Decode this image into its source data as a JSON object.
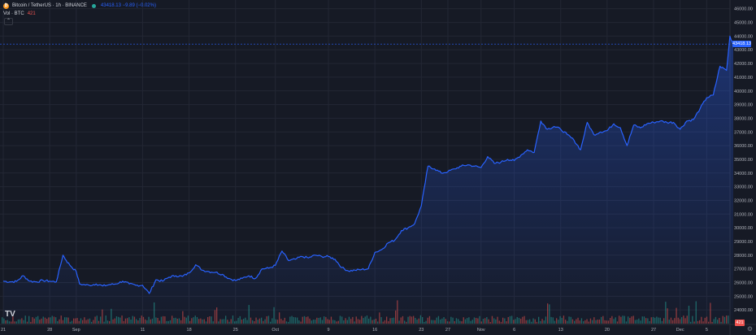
{
  "legend": {
    "symbol": "Bitcoin / TetherUS · 1h · BINANCE",
    "quote": "43418.13 −9.89 (−0.02%)",
    "vol_label": "Vol · BTC",
    "vol_value": "421",
    "collapse_glyph": "⌃"
  },
  "price_tag": "43418.13",
  "vol_tag": "421",
  "logo_text": "TV",
  "settings_icon": "gear-icon",
  "colors": {
    "background": "#161a25",
    "line": "#2962ff",
    "up": "#26a69a",
    "down": "#ef5350",
    "grid": "#232734"
  },
  "chart_data": {
    "type": "area",
    "x_unit": "days",
    "x_ticks": [
      {
        "label": "21",
        "x": 0
      },
      {
        "label": "28",
        "x": 7
      },
      {
        "label": "Sep",
        "x": 11
      },
      {
        "label": "11",
        "x": 21
      },
      {
        "label": "18",
        "x": 28
      },
      {
        "label": "25",
        "x": 35
      },
      {
        "label": "Oct",
        "x": 41
      },
      {
        "label": "9",
        "x": 49
      },
      {
        "label": "16",
        "x": 56
      },
      {
        "label": "23",
        "x": 63
      },
      {
        "label": "27",
        "x": 67
      },
      {
        "label": "Nov",
        "x": 72
      },
      {
        "label": "6",
        "x": 77
      },
      {
        "label": "13",
        "x": 84
      },
      {
        "label": "20",
        "x": 91
      },
      {
        "label": "27",
        "x": 98
      },
      {
        "label": "Dec",
        "x": 102
      },
      {
        "label": "5",
        "x": 106
      }
    ],
    "x_range": [
      0,
      110
    ],
    "y_range": [
      23000,
      46400
    ],
    "y_ticks": [
      24000,
      25000,
      26000,
      27000,
      28000,
      29000,
      30000,
      31000,
      32000,
      33000,
      34000,
      35000,
      36000,
      37000,
      38000,
      39000,
      40000,
      41000,
      42000,
      43000,
      44000,
      45000,
      46000
    ],
    "y_tick_format": "0.00",
    "grid": true,
    "series": [
      {
        "values": [
          [
            0,
            26100
          ],
          [
            1,
            26050
          ],
          [
            2,
            26080
          ],
          [
            3,
            26500
          ],
          [
            4,
            26100
          ],
          [
            5,
            26050
          ],
          [
            6,
            26150
          ],
          [
            7,
            26100
          ],
          [
            8,
            26050
          ],
          [
            9,
            28000
          ],
          [
            9.5,
            27600
          ],
          [
            10,
            27300
          ],
          [
            11,
            26800
          ],
          [
            11.5,
            25900
          ],
          [
            12,
            25850
          ],
          [
            13,
            25800
          ],
          [
            14,
            25900
          ],
          [
            15,
            25750
          ],
          [
            16,
            25850
          ],
          [
            17,
            25900
          ],
          [
            18,
            26100
          ],
          [
            19,
            25900
          ],
          [
            20,
            25800
          ],
          [
            21,
            25800
          ],
          [
            22,
            25200
          ],
          [
            23,
            26200
          ],
          [
            24,
            26100
          ],
          [
            25,
            26400
          ],
          [
            26,
            26500
          ],
          [
            27,
            26450
          ],
          [
            28,
            26700
          ],
          [
            29,
            27300
          ],
          [
            30,
            26900
          ],
          [
            31,
            26800
          ],
          [
            32,
            26750
          ],
          [
            33,
            26600
          ],
          [
            34,
            26300
          ],
          [
            35,
            26150
          ],
          [
            36,
            26300
          ],
          [
            37,
            26500
          ],
          [
            38,
            26300
          ],
          [
            39,
            27000
          ],
          [
            40,
            27050
          ],
          [
            41,
            27250
          ],
          [
            42,
            28300
          ],
          [
            43,
            27600
          ],
          [
            44,
            27700
          ],
          [
            45,
            27900
          ],
          [
            46,
            27800
          ],
          [
            47,
            28000
          ],
          [
            48,
            27900
          ],
          [
            49,
            27900
          ],
          [
            50,
            27700
          ],
          [
            51,
            27100
          ],
          [
            52,
            26850
          ],
          [
            53,
            26900
          ],
          [
            54,
            26950
          ],
          [
            55,
            27000
          ],
          [
            56,
            28200
          ],
          [
            57,
            28400
          ],
          [
            58,
            28900
          ],
          [
            59,
            29100
          ],
          [
            60,
            29800
          ],
          [
            61,
            30000
          ],
          [
            62,
            30300
          ],
          [
            63,
            31600
          ],
          [
            64,
            34500
          ],
          [
            65,
            34300
          ],
          [
            66,
            34000
          ],
          [
            67,
            34100
          ],
          [
            68,
            34300
          ],
          [
            69,
            34500
          ],
          [
            70,
            34600
          ],
          [
            71,
            34500
          ],
          [
            72,
            34400
          ],
          [
            73,
            35200
          ],
          [
            74,
            34700
          ],
          [
            75,
            34800
          ],
          [
            76,
            35000
          ],
          [
            77,
            34900
          ],
          [
            78,
            35300
          ],
          [
            79,
            35700
          ],
          [
            80,
            35500
          ],
          [
            81,
            37800
          ],
          [
            82,
            37200
          ],
          [
            83,
            37400
          ],
          [
            84,
            37200
          ],
          [
            85,
            36800
          ],
          [
            86,
            36400
          ],
          [
            87,
            35700
          ],
          [
            88,
            37700
          ],
          [
            89,
            36800
          ],
          [
            90,
            37000
          ],
          [
            91,
            37100
          ],
          [
            92,
            37600
          ],
          [
            93,
            37300
          ],
          [
            94,
            36000
          ],
          [
            95,
            37500
          ],
          [
            96,
            37300
          ],
          [
            97,
            37600
          ],
          [
            98,
            37700
          ],
          [
            99,
            37800
          ],
          [
            100,
            37700
          ],
          [
            101,
            37700
          ],
          [
            102,
            37200
          ],
          [
            103,
            37800
          ],
          [
            104,
            37900
          ],
          [
            105,
            38700
          ],
          [
            106,
            39500
          ],
          [
            107,
            39700
          ],
          [
            108,
            41800
          ],
          [
            109,
            41500
          ],
          [
            109.5,
            44000
          ],
          [
            110,
            43418
          ]
        ]
      }
    ],
    "volume": {
      "axis_max": 1000,
      "note": "volume histogram bars (values estimated)"
    },
    "last_price": 43418.13
  }
}
